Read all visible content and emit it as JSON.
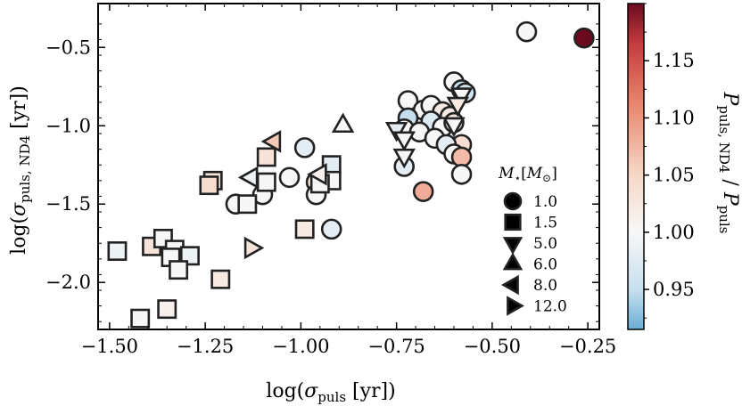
{
  "chart_data": {
    "type": "scatter",
    "xlabel": "log(σ_puls [yr])",
    "ylabel": "log(σ_puls, ND4 [yr])",
    "xlim": [
      -1.53,
      -0.22
    ],
    "ylim": [
      -2.3,
      -0.22
    ],
    "xticks": [
      "−1.50",
      "−1.25",
      "−1.00",
      "−0.75",
      "−0.50",
      "−0.25"
    ],
    "xtick_values": [
      -1.5,
      -1.25,
      -1.0,
      -0.75,
      -0.5,
      -0.25
    ],
    "yticks": [
      "−0.5",
      "−1.0",
      "−1.5",
      "−2.0"
    ],
    "ytick_values": [
      -0.5,
      -1.0,
      -1.5,
      -2.0
    ],
    "colorbar": {
      "label": "P_puls, ND4 / P_puls",
      "range": [
        0.915,
        1.2
      ],
      "ticks": [
        "0.95",
        "1.00",
        "1.05",
        "1.10",
        "1.15"
      ],
      "tick_values": [
        0.95,
        1.0,
        1.05,
        1.1,
        1.15
      ]
    },
    "legend": {
      "title": "M⋆[M⊙]",
      "placement": "right",
      "entries": [
        {
          "mass": "1.0",
          "marker": "circle"
        },
        {
          "mass": "1.5",
          "marker": "square"
        },
        {
          "mass": "5.0",
          "marker": "triangle-down"
        },
        {
          "mass": "6.0",
          "marker": "triangle-up"
        },
        {
          "mass": "8.0",
          "marker": "triangle-left"
        },
        {
          "mass": "12.0",
          "marker": "triangle-right"
        }
      ]
    },
    "points": [
      {
        "x": -0.41,
        "y": -0.4,
        "c": 1.0,
        "m": "circle"
      },
      {
        "x": -0.26,
        "y": -0.44,
        "c": 1.2,
        "m": "circle"
      },
      {
        "x": -0.6,
        "y": -0.72,
        "c": 1.0,
        "m": "circle"
      },
      {
        "x": -0.58,
        "y": -0.77,
        "c": 0.95,
        "m": "circle"
      },
      {
        "x": -0.57,
        "y": -0.79,
        "c": 0.96,
        "m": "circle"
      },
      {
        "x": -0.72,
        "y": -0.84,
        "c": 1.0,
        "m": "circle"
      },
      {
        "x": -0.68,
        "y": -0.9,
        "c": 1.0,
        "m": "circle"
      },
      {
        "x": -0.66,
        "y": -0.87,
        "c": 1.0,
        "m": "circle"
      },
      {
        "x": -0.63,
        "y": -0.91,
        "c": 1.02,
        "m": "circle"
      },
      {
        "x": -0.61,
        "y": -0.94,
        "c": 1.02,
        "m": "circle"
      },
      {
        "x": -0.72,
        "y": -0.95,
        "c": 0.95,
        "m": "circle"
      },
      {
        "x": -0.66,
        "y": -0.97,
        "c": 0.97,
        "m": "circle"
      },
      {
        "x": -0.63,
        "y": -1.01,
        "c": 1.0,
        "m": "circle"
      },
      {
        "x": -0.6,
        "y": -0.98,
        "c": 1.03,
        "m": "circle"
      },
      {
        "x": -0.73,
        "y": -1.02,
        "c": 1.0,
        "m": "circle"
      },
      {
        "x": -0.69,
        "y": -1.04,
        "c": 1.0,
        "m": "circle"
      },
      {
        "x": -0.58,
        "y": -1.12,
        "c": 1.04,
        "m": "circle"
      },
      {
        "x": -0.65,
        "y": -1.08,
        "c": 1.0,
        "m": "circle"
      },
      {
        "x": -0.62,
        "y": -1.12,
        "c": 0.98,
        "m": "circle"
      },
      {
        "x": -0.6,
        "y": -1.18,
        "c": 1.0,
        "m": "circle"
      },
      {
        "x": -0.73,
        "y": -1.26,
        "c": 0.98,
        "m": "circle"
      },
      {
        "x": -0.58,
        "y": -1.2,
        "c": 1.07,
        "m": "circle"
      },
      {
        "x": -0.58,
        "y": -1.31,
        "c": 1.0,
        "m": "circle"
      },
      {
        "x": -0.68,
        "y": -1.42,
        "c": 1.08,
        "m": "circle"
      },
      {
        "x": -0.99,
        "y": -1.14,
        "c": 0.98,
        "m": "circle"
      },
      {
        "x": -1.03,
        "y": -1.33,
        "c": 1.0,
        "m": "circle"
      },
      {
        "x": -0.96,
        "y": -1.36,
        "c": 1.02,
        "m": "circle"
      },
      {
        "x": -1.17,
        "y": -1.5,
        "c": 1.0,
        "m": "circle"
      },
      {
        "x": -1.1,
        "y": -1.44,
        "c": 1.0,
        "m": "circle"
      },
      {
        "x": -0.96,
        "y": -1.44,
        "c": 1.0,
        "m": "circle"
      },
      {
        "x": -0.92,
        "y": -1.66,
        "c": 0.98,
        "m": "circle"
      },
      {
        "x": -1.23,
        "y": -1.35,
        "c": 1.03,
        "m": "square"
      },
      {
        "x": -1.24,
        "y": -1.38,
        "c": 1.04,
        "m": "square"
      },
      {
        "x": -1.09,
        "y": -1.2,
        "c": 1.03,
        "m": "square"
      },
      {
        "x": -1.09,
        "y": -1.36,
        "c": 1.0,
        "m": "square"
      },
      {
        "x": -0.92,
        "y": -1.25,
        "c": 0.98,
        "m": "square"
      },
      {
        "x": -0.92,
        "y": -1.35,
        "c": 1.0,
        "m": "square"
      },
      {
        "x": -0.95,
        "y": -1.37,
        "c": 1.0,
        "m": "square"
      },
      {
        "x": -1.14,
        "y": -1.5,
        "c": 1.0,
        "m": "square"
      },
      {
        "x": -0.99,
        "y": -1.66,
        "c": 1.02,
        "m": "square"
      },
      {
        "x": -1.48,
        "y": -1.8,
        "c": 0.99,
        "m": "square"
      },
      {
        "x": -1.39,
        "y": -1.77,
        "c": 1.03,
        "m": "square"
      },
      {
        "x": -1.36,
        "y": -1.72,
        "c": 1.0,
        "m": "square"
      },
      {
        "x": -1.33,
        "y": -1.79,
        "c": 1.0,
        "m": "square"
      },
      {
        "x": -1.34,
        "y": -1.84,
        "c": 1.0,
        "m": "square"
      },
      {
        "x": -1.29,
        "y": -1.83,
        "c": 0.99,
        "m": "square"
      },
      {
        "x": -1.32,
        "y": -1.92,
        "c": 1.0,
        "m": "square"
      },
      {
        "x": -1.21,
        "y": -1.98,
        "c": 1.02,
        "m": "square"
      },
      {
        "x": -1.42,
        "y": -2.23,
        "c": 1.0,
        "m": "square"
      },
      {
        "x": -1.35,
        "y": -2.17,
        "c": 1.01,
        "m": "square"
      },
      {
        "x": -0.58,
        "y": -0.8,
        "c": 1.0,
        "m": "triangle-down"
      },
      {
        "x": -0.59,
        "y": -0.86,
        "c": 1.02,
        "m": "triangle-down"
      },
      {
        "x": -0.75,
        "y": -1.02,
        "c": 0.98,
        "m": "triangle-down"
      },
      {
        "x": -0.6,
        "y": -0.99,
        "c": 1.0,
        "m": "triangle-down"
      },
      {
        "x": -0.73,
        "y": -1.08,
        "c": 1.0,
        "m": "triangle-down"
      },
      {
        "x": -0.73,
        "y": -1.19,
        "c": 1.0,
        "m": "triangle-down"
      },
      {
        "x": -0.89,
        "y": -1.0,
        "c": 1.0,
        "m": "triangle-up"
      },
      {
        "x": -1.07,
        "y": -1.1,
        "c": 1.06,
        "m": "triangle-left"
      },
      {
        "x": -1.13,
        "y": -1.33,
        "c": 0.99,
        "m": "triangle-left"
      },
      {
        "x": -0.95,
        "y": -1.31,
        "c": 1.01,
        "m": "triangle-left"
      },
      {
        "x": -1.13,
        "y": -1.78,
        "c": 1.03,
        "m": "triangle-right"
      }
    ]
  }
}
